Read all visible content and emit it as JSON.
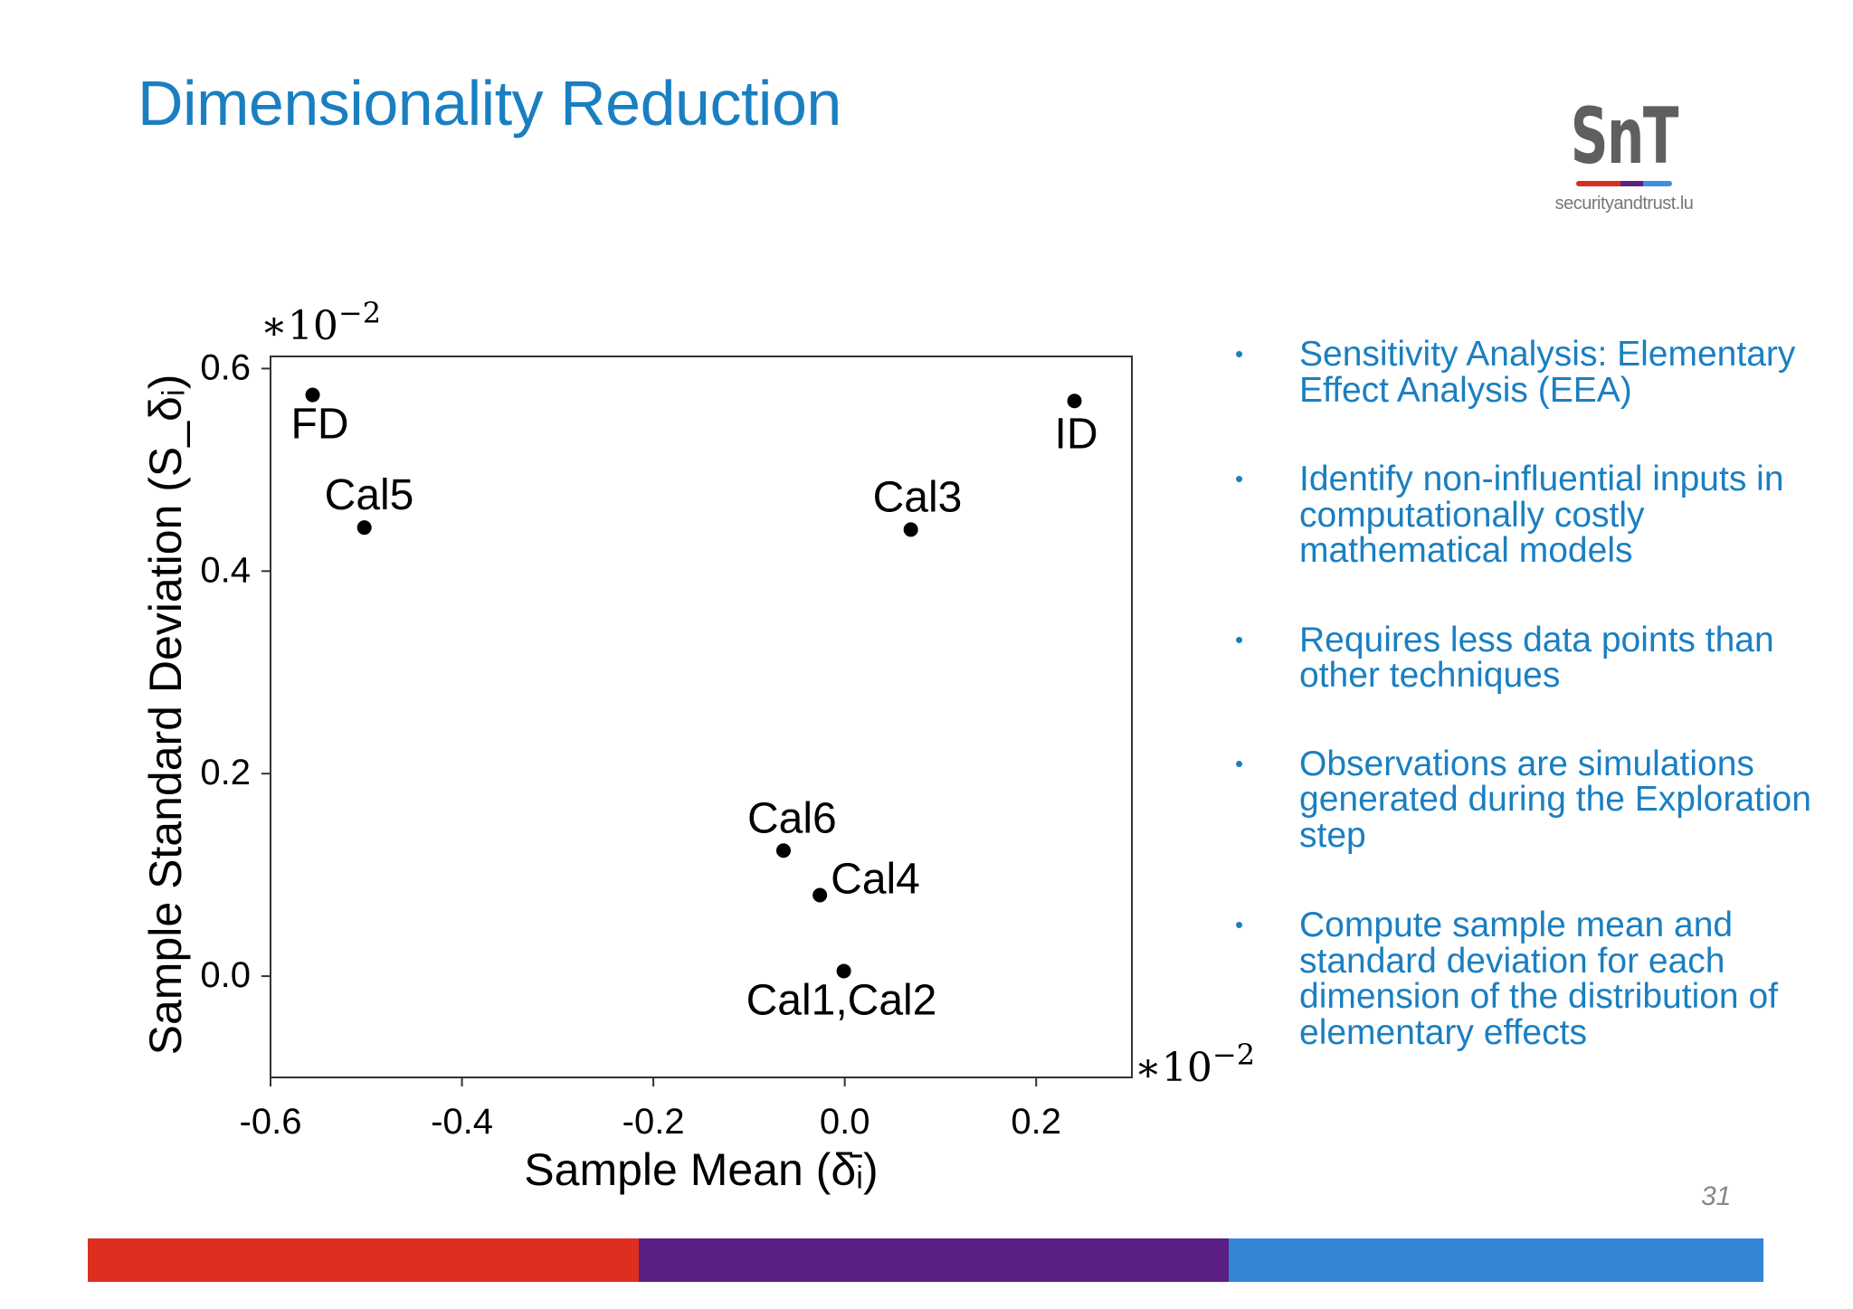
{
  "title": "Dimensionality Reduction",
  "logo": {
    "mark": "SnT",
    "url": "securityandtrust.lu",
    "stripe_colors": [
      "#d92e20",
      "#5b2185",
      "#3a8fe0"
    ]
  },
  "bullets": [
    "Sensitivity Analysis: Elementary Effect Analysis (EEA)",
    "Identify non-influential inputs in computationally costly mathematical models",
    "Requires less data points than other techniques",
    "Observations are simulations generated during the Exploration step",
    "Compute sample mean and standard deviation for each dimension of the distribution of elementary effects"
  ],
  "bullet_symbol": "•",
  "page_number": "31",
  "footer_colors": [
    "#dd2e1f",
    "#5b1e84",
    "#3585d6"
  ],
  "accent_color": "#1a7fc1",
  "chart_data": {
    "type": "scatter",
    "xlabel": "Sample Mean (δ̄ᵢ)",
    "ylabel": "Sample Standard Deviation (S_δᵢ)",
    "x_multiplier": "∗10",
    "y_multiplier": "∗10",
    "multiplier_exponent": "−2",
    "xlim": [
      -0.6,
      0.3
    ],
    "ylim": [
      -0.1,
      0.612
    ],
    "xticks": [
      -0.6,
      -0.4,
      -0.2,
      0.0,
      0.2
    ],
    "xtick_labels": [
      "-0.6",
      "-0.4",
      "-0.2",
      "0.0",
      "0.2"
    ],
    "yticks": [
      0.0,
      0.2,
      0.4,
      0.6
    ],
    "ytick_labels": [
      "0.0",
      "0.2",
      "0.4",
      "0.6"
    ],
    "grid": false,
    "points": [
      {
        "label": "FD",
        "x": -0.556,
        "y": 0.574
      },
      {
        "label": "Cal5",
        "x": -0.502,
        "y": 0.443
      },
      {
        "label": "ID",
        "x": 0.24,
        "y": 0.568
      },
      {
        "label": "Cal3",
        "x": 0.069,
        "y": 0.441
      },
      {
        "label": "Cal6",
        "x": -0.064,
        "y": 0.124
      },
      {
        "label": "Cal4",
        "x": -0.026,
        "y": 0.08
      },
      {
        "label": "Cal1,Cal2",
        "x": -0.001,
        "y": 0.005
      }
    ]
  }
}
